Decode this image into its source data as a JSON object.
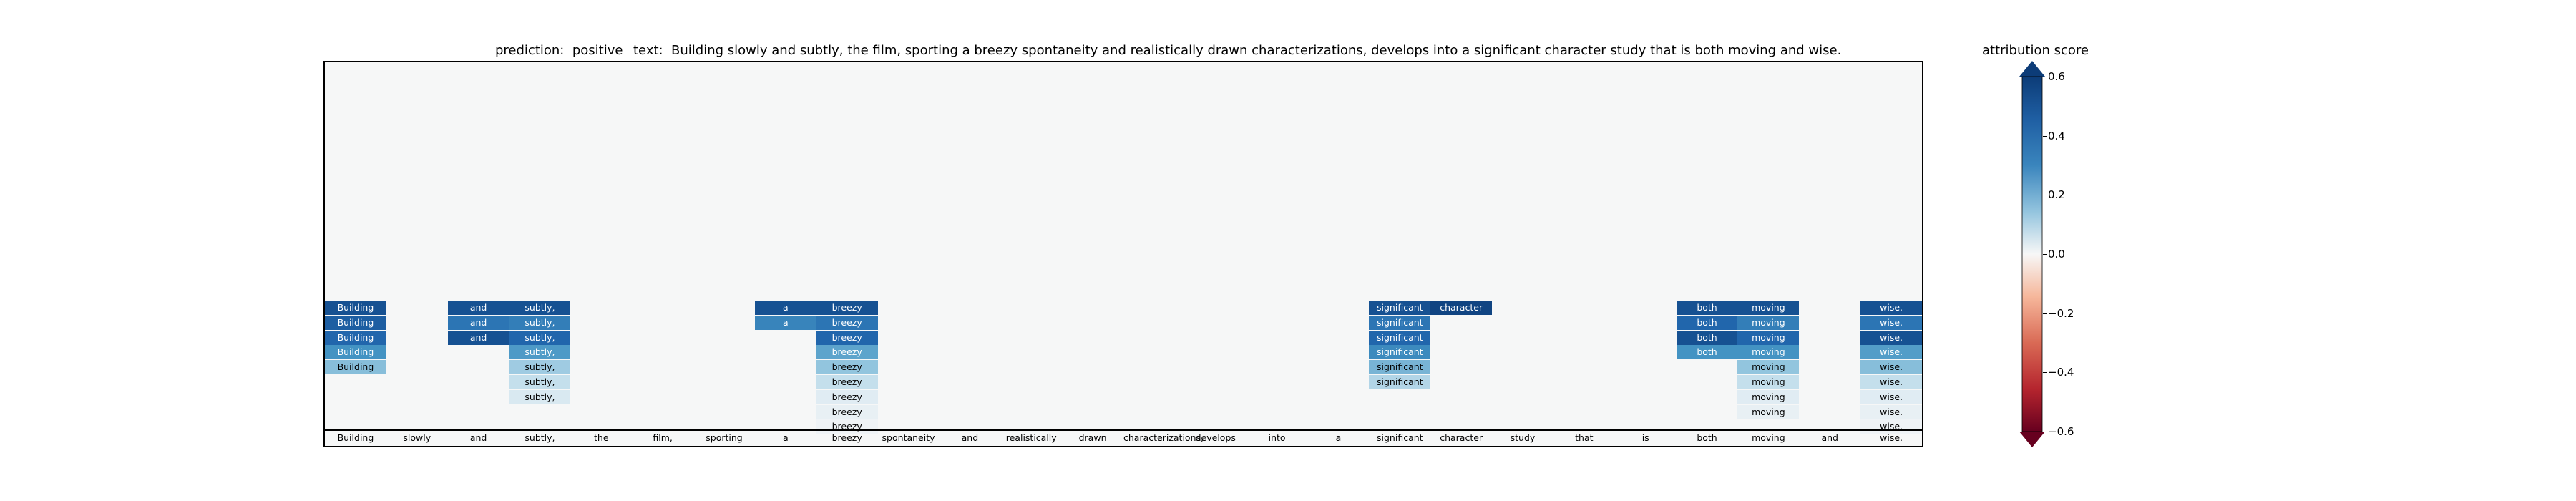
{
  "title": {
    "prediction": "prediction:  positive",
    "text": "text:  Building slowly and subtly, the film, sporting a breezy spontaneity and realistically drawn characterizations, develops into a significant character study that is both moving and wise."
  },
  "chart_data": {
    "type": "heatmap",
    "tokens": [
      "Building",
      "slowly",
      "and",
      "subtly,",
      "the",
      "film,",
      "sporting",
      "a",
      "breezy",
      "spontaneity",
      "and",
      "realistically",
      "drawn",
      "characterizations,",
      "develops",
      "into",
      "a",
      "significant",
      "character",
      "study",
      "that",
      "is",
      "both",
      "moving",
      "and",
      "wise."
    ],
    "colorbar": {
      "label": "attribution score",
      "range": [
        -0.6,
        0.6
      ],
      "ticks": [
        "0.6",
        "0.4",
        "0.2",
        "0.0",
        "−0.2",
        "−0.4",
        "−0.6"
      ],
      "tick_values": [
        0.6,
        0.4,
        0.2,
        0.0,
        -0.2,
        -0.4,
        -0.6
      ],
      "colors_high": "#0c3c78",
      "colors_low": "#67001f"
    },
    "columns": [
      {
        "token_index": 0,
        "values": [
          0.55,
          0.52,
          0.5,
          0.35,
          0.22
        ]
      },
      {
        "token_index": 2,
        "values": [
          0.55,
          0.45,
          0.55
        ]
      },
      {
        "token_index": 3,
        "values": [
          0.55,
          0.42,
          0.5,
          0.33,
          0.18,
          0.12,
          0.08
        ]
      },
      {
        "token_index": 7,
        "values": [
          0.55,
          0.4
        ]
      },
      {
        "token_index": 8,
        "values": [
          0.55,
          0.45,
          0.5,
          0.3,
          0.2,
          0.12,
          0.06,
          0.04,
          0.02
        ]
      },
      {
        "token_index": 17,
        "values": [
          0.55,
          0.45,
          0.5,
          0.38,
          0.25,
          0.15
        ]
      },
      {
        "token_index": 18,
        "values": [
          0.58
        ]
      },
      {
        "token_index": 22,
        "values": [
          0.55,
          0.5,
          0.55,
          0.35
        ]
      },
      {
        "token_index": 23,
        "values": [
          0.55,
          0.42,
          0.5,
          0.35,
          0.2,
          0.12,
          0.06,
          0.04
        ]
      },
      {
        "token_index": 25,
        "values": [
          0.55,
          0.45,
          0.55,
          0.32,
          0.22,
          0.12,
          0.06,
          0.04,
          0.02
        ]
      }
    ]
  }
}
